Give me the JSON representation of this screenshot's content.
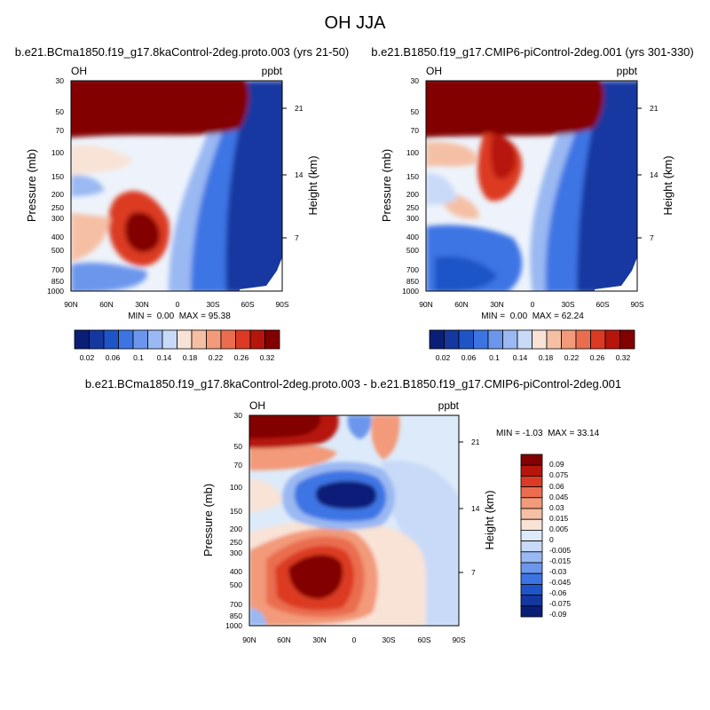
{
  "figure_title": "OH JJA",
  "colors": {
    "scale12": [
      "#0a1e78",
      "#1537a0",
      "#1f54c8",
      "#3c74e4",
      "#6c96ec",
      "#9ab8f2",
      "#c8daf8",
      "#f9e2d6",
      "#f5bfa4",
      "#f29a79",
      "#ea6d4f",
      "#dc3a24",
      "#b6150c",
      "#830000"
    ],
    "diff": [
      "#0a1e78",
      "#1537a0",
      "#1f54c8",
      "#3c74e4",
      "#6c96ec",
      "#9ab8f2",
      "#c8daf8",
      "#ddeaf9",
      "#f9e2d6",
      "#f5bfa4",
      "#f29a79",
      "#ea6d4f",
      "#dc3a24",
      "#b6150c",
      "#830000"
    ]
  },
  "chart_data": [
    {
      "type": "contour",
      "title": "b.e21.BCma1850.f19_g17.8kaControl-2deg.proto.003 (yrs 21-50)",
      "variable": "OH",
      "units": "ppbt",
      "xlabel": "",
      "ylabel": "Pressure (mb)",
      "ylabel_right": "Height (km)",
      "xticks": [
        "90N",
        "60N",
        "30N",
        "0",
        "30S",
        "60S",
        "90S"
      ],
      "yticks": [
        30,
        50,
        70,
        100,
        150,
        200,
        250,
        300,
        400,
        500,
        700,
        850,
        1000
      ],
      "height_ticks": [
        21,
        14,
        7
      ],
      "ylim": [
        1000,
        30
      ],
      "min_max": "MIN =  0.00  MAX = 95.38",
      "colorbar_labels": [
        "0.02",
        "0.06",
        "0.1",
        "0.14",
        "0.18",
        "0.22",
        "0.26",
        "0.32"
      ]
    },
    {
      "type": "contour",
      "title": "b.e21.B1850.f19_g17.CMIP6-piControl-2deg.001 (yrs 301-330)",
      "variable": "OH",
      "units": "ppbt",
      "xlabel": "",
      "ylabel": "Pressure (mb)",
      "ylabel_right": "Height (km)",
      "xticks": [
        "90N",
        "60N",
        "30N",
        "0",
        "30S",
        "60S",
        "90S"
      ],
      "yticks": [
        30,
        50,
        70,
        100,
        150,
        200,
        250,
        300,
        400,
        500,
        700,
        850,
        1000
      ],
      "height_ticks": [
        21,
        14,
        7
      ],
      "ylim": [
        1000,
        30
      ],
      "min_max": "MIN =  0.00  MAX = 62.24",
      "colorbar_labels": [
        "0.02",
        "0.06",
        "0.1",
        "0.14",
        "0.18",
        "0.22",
        "0.26",
        "0.32"
      ]
    },
    {
      "type": "contour",
      "title": "b.e21.BCma1850.f19_g17.8kaControl-2deg.proto.003 - b.e21.B1850.f19_g17.CMIP6-piControl-2deg.001",
      "variable": "OH",
      "units": "ppbt",
      "xlabel": "",
      "ylabel": "Pressure (mb)",
      "ylabel_right": "Height (km)",
      "xticks": [
        "90N",
        "60N",
        "30N",
        "0",
        "30S",
        "60S",
        "90S"
      ],
      "yticks": [
        30,
        50,
        70,
        100,
        150,
        200,
        250,
        300,
        400,
        500,
        700,
        850,
        1000
      ],
      "height_ticks": [
        21,
        14,
        7
      ],
      "ylim": [
        1000,
        30
      ],
      "min_max": "MIN = -1.03  MAX = 33.14",
      "colorbar_labels": [
        "0.09",
        "0.075",
        "0.06",
        "0.045",
        "0.03",
        "0.015",
        "0.005",
        "0",
        "-0.005",
        "-0.015",
        "-0.03",
        "-0.045",
        "-0.06",
        "-0.075",
        "-0.09"
      ]
    }
  ]
}
